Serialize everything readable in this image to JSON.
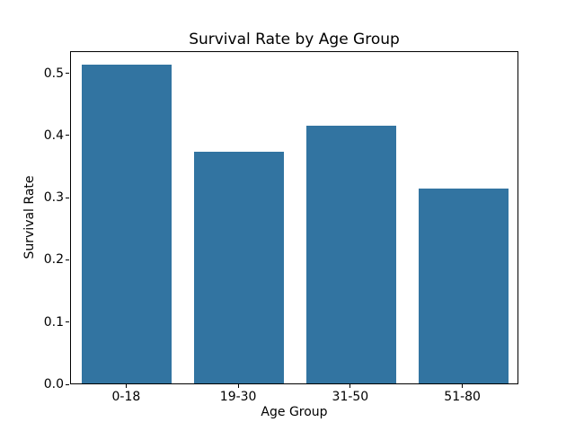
{
  "chart_data": {
    "type": "bar",
    "title": "Survival Rate by Age Group",
    "xlabel": "Age Group",
    "ylabel": "Survival Rate",
    "categories": [
      "0-18",
      "19-30",
      "31-50",
      "51-80"
    ],
    "values": [
      0.512,
      0.373,
      0.414,
      0.313
    ],
    "ylim": [
      0,
      0.5357
    ],
    "ytick_labels": [
      "0.0",
      "0.1",
      "0.2",
      "0.3",
      "0.4",
      "0.5"
    ],
    "bar_width_fraction": 0.8,
    "bar_color": "#3274a1",
    "axis_color": "#000000",
    "background_color": "#ffffff",
    "grid": false,
    "legend": false
  }
}
